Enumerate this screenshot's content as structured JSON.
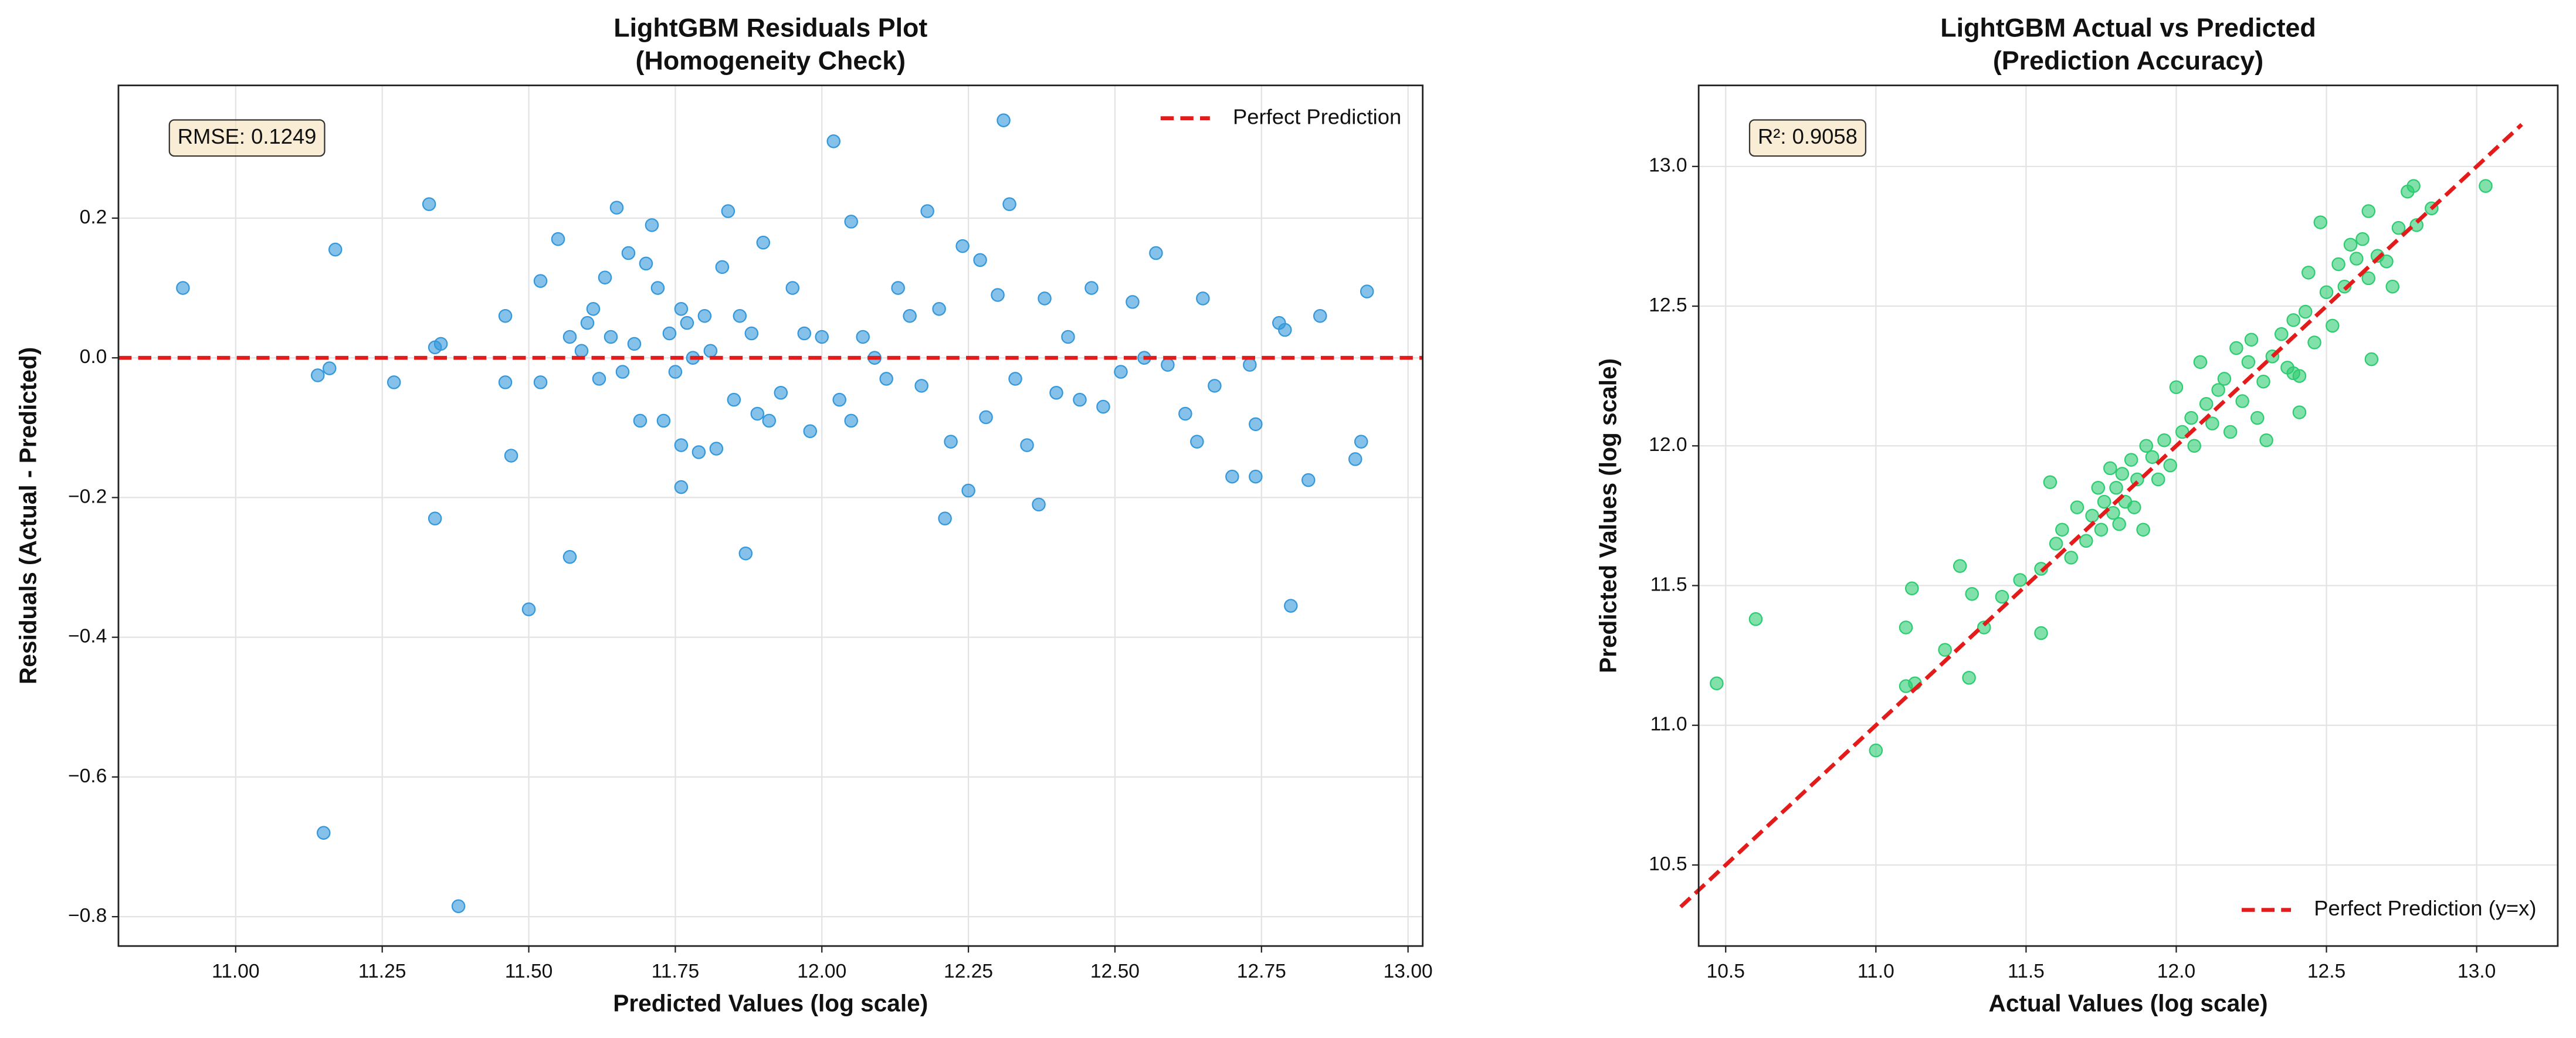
{
  "chart_data": [
    {
      "type": "scatter",
      "title": "LightGBM Residuals Plot",
      "subtitle": "(Homogeneity Check)",
      "x_label": "Predicted Values (log scale)",
      "y_label": "Residuals (Actual - Predicted)",
      "annotation": "RMSE: 0.1249",
      "grid": true,
      "legend": "upper right",
      "xlim": [
        10.8,
        13.025
      ],
      "ylim": [
        -0.842,
        0.39
      ],
      "xticks": [
        {
          "value": 11,
          "label": "11.00"
        },
        {
          "value": 11.25,
          "label": "11.25"
        },
        {
          "value": 11.5,
          "label": "11.50"
        },
        {
          "value": 11.75,
          "label": "11.75"
        },
        {
          "value": 12,
          "label": "12.00"
        },
        {
          "value": 12.25,
          "label": "12.25"
        },
        {
          "value": 12.5,
          "label": "12.50"
        },
        {
          "value": 12.75,
          "label": "12.75"
        },
        {
          "value": 13,
          "label": "13.00"
        }
      ],
      "yticks": [
        {
          "value": -0.8,
          "label": "−0.8"
        },
        {
          "value": -0.6,
          "label": "−0.6"
        },
        {
          "value": -0.4,
          "label": "−0.4"
        },
        {
          "value": -0.2,
          "label": "−0.2"
        },
        {
          "value": 0,
          "label": "0.0"
        },
        {
          "value": 0.2,
          "label": "0.2"
        }
      ],
      "reference_line": {
        "name": "Perfect Prediction",
        "color": "#e31b1b",
        "x": [
          10.8,
          13.025
        ],
        "y": [
          0,
          0
        ]
      },
      "series": [
        {
          "color": "#3498db",
          "x": [
            10.91,
            11.14,
            11.16,
            11.17,
            11.15,
            11.27,
            11.33,
            11.35,
            11.34,
            11.34,
            11.38,
            11.46,
            11.46,
            11.47,
            11.5,
            11.52,
            11.52,
            11.55,
            11.57,
            11.57,
            11.59,
            11.6,
            11.61,
            11.62,
            11.63,
            11.64,
            11.65,
            11.66,
            11.67,
            11.68,
            11.69,
            11.7,
            11.71,
            11.72,
            11.73,
            11.74,
            11.75,
            11.76,
            11.76,
            11.76,
            11.77,
            11.78,
            11.79,
            11.8,
            11.81,
            11.82,
            11.83,
            11.84,
            11.85,
            11.86,
            11.87,
            11.88,
            11.89,
            11.9,
            11.91,
            11.93,
            11.95,
            11.97,
            11.98,
            12.0,
            12.02,
            12.03,
            12.05,
            12.05,
            12.07,
            12.09,
            12.11,
            12.13,
            12.15,
            12.17,
            12.18,
            12.2,
            12.21,
            12.22,
            12.24,
            12.25,
            12.27,
            12.28,
            12.3,
            12.31,
            12.32,
            12.33,
            12.35,
            12.37,
            12.38,
            12.4,
            12.42,
            12.44,
            12.46,
            12.48,
            12.51,
            12.53,
            12.55,
            12.57,
            12.59,
            12.62,
            12.64,
            12.65,
            12.67,
            12.7,
            12.73,
            12.74,
            12.74,
            12.78,
            12.79,
            12.8,
            12.83,
            12.85,
            12.91,
            12.92,
            12.93
          ],
          "values": [
            0.1,
            -0.025,
            -0.015,
            0.155,
            -0.68,
            -0.035,
            0.22,
            0.02,
            0.015,
            -0.23,
            -0.785,
            0.06,
            -0.035,
            -0.14,
            -0.36,
            0.11,
            -0.035,
            0.17,
            -0.285,
            0.03,
            0.01,
            0.05,
            0.07,
            -0.03,
            0.115,
            0.03,
            0.215,
            -0.02,
            0.15,
            0.02,
            -0.09,
            0.135,
            0.19,
            0.1,
            -0.09,
            0.035,
            -0.02,
            0.07,
            -0.125,
            -0.185,
            0.05,
            0.0,
            -0.135,
            0.06,
            0.01,
            -0.13,
            0.13,
            0.21,
            -0.06,
            0.06,
            -0.28,
            0.035,
            -0.08,
            0.165,
            -0.09,
            -0.05,
            0.1,
            0.035,
            -0.105,
            0.03,
            0.31,
            -0.06,
            0.195,
            -0.09,
            0.03,
            0.0,
            -0.03,
            0.1,
            0.06,
            -0.04,
            0.21,
            0.07,
            -0.23,
            -0.12,
            0.16,
            -0.19,
            0.14,
            -0.085,
            0.09,
            0.34,
            0.22,
            -0.03,
            -0.125,
            -0.21,
            0.085,
            -0.05,
            0.03,
            -0.06,
            0.1,
            -0.07,
            -0.02,
            0.08,
            0.0,
            0.15,
            -0.01,
            -0.08,
            -0.12,
            0.085,
            -0.04,
            -0.17,
            -0.01,
            -0.17,
            -0.095,
            0.05,
            0.04,
            -0.355,
            -0.175,
            0.06,
            -0.145,
            -0.12,
            0.095
          ]
        }
      ]
    },
    {
      "type": "scatter",
      "title": "LightGBM Actual vs Predicted",
      "subtitle": "(Prediction Accuracy)",
      "x_label": "Actual Values (log scale)",
      "y_label": "Predicted Values (log scale)",
      "annotation": "R²: 0.9058",
      "grid": true,
      "legend": "lower right",
      "xlim": [
        10.41,
        13.27
      ],
      "ylim": [
        10.21,
        13.29
      ],
      "xticks": [
        {
          "value": 10.5,
          "label": "10.5"
        },
        {
          "value": 11,
          "label": "11.0"
        },
        {
          "value": 11.5,
          "label": "11.5"
        },
        {
          "value": 12,
          "label": "12.0"
        },
        {
          "value": 12.5,
          "label": "12.5"
        },
        {
          "value": 13,
          "label": "13.0"
        }
      ],
      "yticks": [
        {
          "value": 10.5,
          "label": "10.5"
        },
        {
          "value": 11,
          "label": "11.0"
        },
        {
          "value": 11.5,
          "label": "11.5"
        },
        {
          "value": 12,
          "label": "12.0"
        },
        {
          "value": 12.5,
          "label": "12.5"
        },
        {
          "value": 13,
          "label": "13.0"
        }
      ],
      "reference_line": {
        "name": "Perfect Prediction (y=x)",
        "color": "#e31b1b",
        "x": [
          10.35,
          13.15
        ],
        "y": [
          10.35,
          13.15
        ]
      },
      "series": [
        {
          "color": "#2ecc71",
          "x": [
            10.47,
            10.6,
            11.0,
            11.1,
            11.12,
            11.1,
            11.13,
            11.23,
            11.28,
            11.31,
            11.32,
            11.36,
            11.42,
            11.48,
            11.55,
            11.55,
            11.58,
            11.6,
            11.62,
            11.65,
            11.67,
            11.7,
            11.72,
            11.74,
            11.75,
            11.76,
            11.78,
            11.79,
            11.8,
            11.81,
            11.82,
            11.83,
            11.85,
            11.86,
            11.87,
            11.89,
            11.9,
            11.92,
            11.94,
            11.96,
            11.98,
            12.0,
            12.02,
            12.05,
            12.06,
            12.08,
            12.1,
            12.12,
            12.14,
            12.16,
            12.18,
            12.2,
            12.22,
            12.24,
            12.25,
            12.27,
            12.29,
            12.3,
            12.32,
            12.35,
            12.37,
            12.39,
            12.41,
            12.43,
            12.44,
            12.46,
            12.48,
            12.5,
            12.52,
            12.54,
            12.56,
            12.58,
            12.6,
            12.62,
            12.64,
            12.65,
            12.67,
            12.7,
            12.72,
            12.74,
            12.77,
            12.8,
            12.85,
            12.79,
            13.03,
            12.64,
            12.39,
            12.41
          ],
          "values": [
            11.15,
            11.38,
            10.91,
            11.35,
            11.49,
            11.14,
            11.15,
            11.27,
            11.57,
            11.17,
            11.47,
            11.35,
            11.46,
            11.52,
            11.33,
            11.56,
            11.87,
            11.65,
            11.7,
            11.6,
            11.78,
            11.66,
            11.75,
            11.85,
            11.7,
            11.8,
            11.92,
            11.76,
            11.85,
            11.72,
            11.9,
            11.8,
            11.95,
            11.78,
            11.88,
            11.7,
            12.0,
            11.96,
            11.88,
            12.02,
            11.93,
            12.21,
            12.05,
            12.1,
            12.0,
            12.3,
            12.15,
            12.08,
            12.2,
            12.24,
            12.05,
            12.35,
            12.16,
            12.3,
            12.38,
            12.1,
            12.23,
            12.02,
            12.32,
            12.4,
            12.28,
            12.45,
            12.25,
            12.48,
            12.62,
            12.37,
            12.8,
            12.55,
            12.43,
            12.65,
            12.57,
            12.72,
            12.67,
            12.74,
            12.6,
            12.31,
            12.68,
            12.66,
            12.57,
            12.78,
            12.91,
            12.79,
            12.85,
            12.93,
            12.93,
            12.84,
            12.26,
            12.12
          ]
        }
      ]
    }
  ]
}
